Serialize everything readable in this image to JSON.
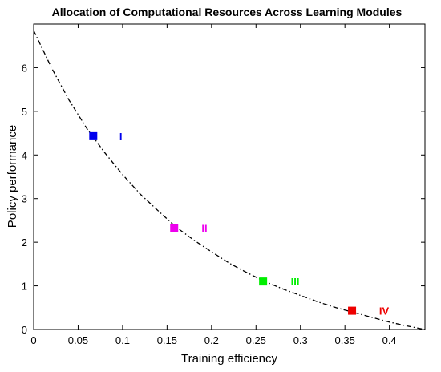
{
  "chart_data": {
    "type": "scatter",
    "title": "Allocation of Computational Resources Across Learning Modules",
    "xlabel": "Training efficiency",
    "ylabel": "Policy performance",
    "xlim": [
      0,
      0.44
    ],
    "ylim": [
      0,
      7
    ],
    "xticks": [
      "0",
      "0.05",
      "0.1",
      "0.15",
      "0.2",
      "0.25",
      "0.3",
      "0.35",
      "0.4"
    ],
    "yticks": [
      "0",
      "1",
      "2",
      "3",
      "4",
      "5",
      "6"
    ],
    "grid": false,
    "curve": {
      "style": "dash-dot",
      "color": "#000000",
      "x": [
        0,
        0.02,
        0.04,
        0.06,
        0.08,
        0.1,
        0.12,
        0.14,
        0.16,
        0.18,
        0.2,
        0.22,
        0.24,
        0.26,
        0.28,
        0.3,
        0.32,
        0.34,
        0.36,
        0.38,
        0.4,
        0.42,
        0.44
      ],
      "y": [
        6.85,
        6.0,
        5.25,
        4.6,
        4.05,
        3.55,
        3.1,
        2.72,
        2.35,
        2.05,
        1.78,
        1.52,
        1.3,
        1.1,
        0.93,
        0.78,
        0.63,
        0.5,
        0.39,
        0.28,
        0.17,
        0.08,
        0.0
      ]
    },
    "points": [
      {
        "label": "I",
        "x": 0.067,
        "y": 4.43,
        "color": "#0000ee",
        "label_x": 0.098,
        "label_y": 4.43
      },
      {
        "label": "II",
        "x": 0.158,
        "y": 2.32,
        "color": "#ee00ee",
        "label_x": 0.192,
        "label_y": 2.32
      },
      {
        "label": "III",
        "x": 0.258,
        "y": 1.1,
        "color": "#00ee00",
        "label_x": 0.294,
        "label_y": 1.1
      },
      {
        "label": "IV",
        "x": 0.358,
        "y": 0.43,
        "color": "#ee0000",
        "label_x": 0.394,
        "label_y": 0.43
      }
    ]
  }
}
